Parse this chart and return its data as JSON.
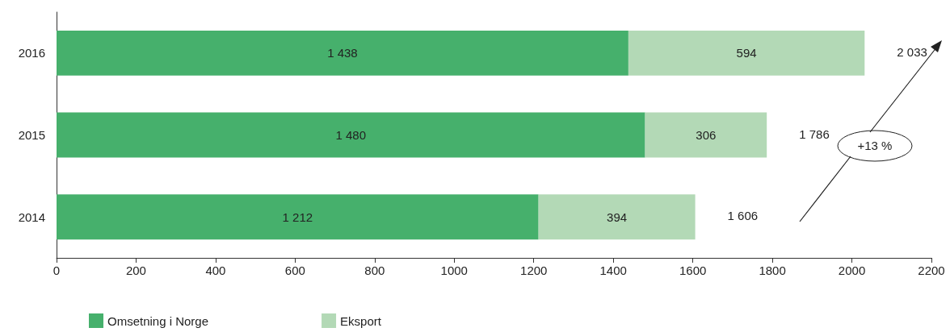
{
  "chart_data": {
    "type": "bar",
    "orientation": "horizontal",
    "stacked": true,
    "categories": [
      "2016",
      "2015",
      "2014"
    ],
    "series": [
      {
        "name": "Omsetning i Norge",
        "color": "#46b06c",
        "values": [
          1438,
          1480,
          1212
        ],
        "value_labels": [
          "1 438",
          "1 480",
          "1 212"
        ]
      },
      {
        "name": "Eksport",
        "color": "#b3d9b6",
        "values": [
          594,
          306,
          394
        ],
        "value_labels": [
          "594",
          "306",
          "394"
        ]
      }
    ],
    "totals": [
      "2 033",
      "1 786",
      "1 606"
    ],
    "xlim": [
      0,
      2200
    ],
    "xticks": [
      0,
      200,
      400,
      600,
      800,
      1000,
      1200,
      1400,
      1600,
      1800,
      2000,
      2200
    ],
    "grid": false,
    "legend": "bottom left",
    "annotations": [
      "+13 %"
    ]
  }
}
